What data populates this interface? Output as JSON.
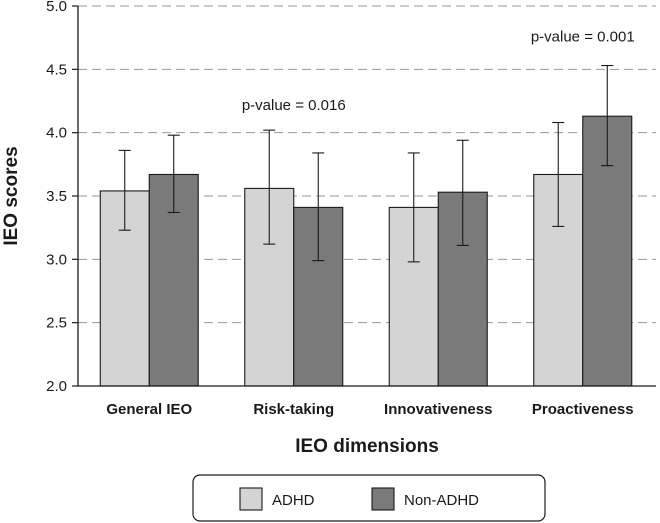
{
  "chart_data": {
    "type": "bar",
    "xlabel": "IEO dimensions",
    "ylabel": "IEO scores",
    "ylim": [
      2.0,
      5.0
    ],
    "yticks": [
      "2.0",
      "2.5",
      "3.0",
      "3.5",
      "4.0",
      "4.5",
      "5.0"
    ],
    "ytick_values": [
      2.0,
      2.5,
      3.0,
      3.5,
      4.0,
      4.5,
      5.0
    ],
    "grid": "horizontal dashed",
    "categories": [
      "General IEO",
      "Risk-taking",
      "Innovativeness",
      "Proactiveness"
    ],
    "series": [
      {
        "name": "ADHD",
        "color": "#d4d4d4",
        "values": [
          3.54,
          3.56,
          3.41,
          3.67
        ],
        "err_low": [
          3.23,
          3.12,
          2.98,
          3.26
        ],
        "err_high": [
          3.86,
          4.02,
          3.84,
          4.08
        ]
      },
      {
        "name": "Non-ADHD",
        "color": "#7a7a7a",
        "values": [
          3.67,
          3.41,
          3.53,
          4.13
        ],
        "err_low": [
          3.37,
          2.99,
          3.11,
          3.74
        ],
        "err_high": [
          3.98,
          3.84,
          3.94,
          4.53
        ]
      }
    ],
    "annotations": [
      {
        "text": "p-value = 0.016",
        "category": "Risk-taking",
        "y": 4.18
      },
      {
        "text": "p-value = 0.001",
        "category": "Proactiveness",
        "y": 4.72
      }
    ],
    "legend_position": "bottom"
  }
}
